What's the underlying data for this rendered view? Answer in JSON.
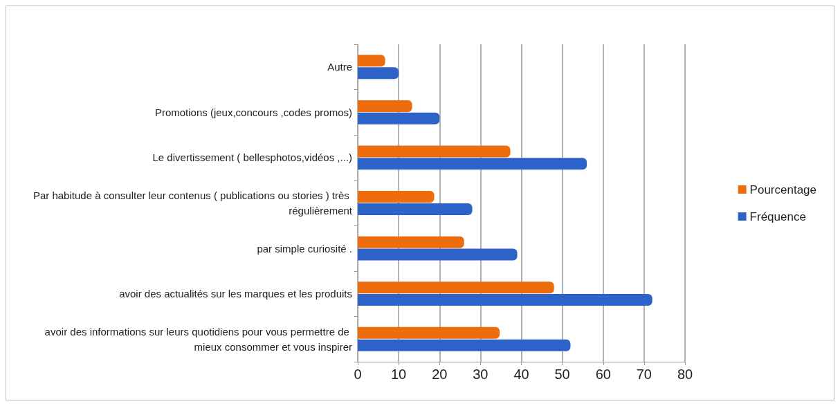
{
  "chart_data": {
    "type": "bar",
    "orientation": "horizontal",
    "categories": [
      "Autre",
      "Promotions (jeux,concours ,codes promos)",
      "Le divertissement ( bellesphotos,vidéos ,...)",
      "Par habitude à consulter leur contenus ( publications ou stories ) très régulièrement",
      "par simple curiosité .",
      "avoir des actualités sur les marques et les produits",
      "avoir des informations sur leurs quotidiens pour vous permettre de mieux consommer et vous inspirer"
    ],
    "series": [
      {
        "name": "Pourcentage",
        "color": "#ed6c0e",
        "values": [
          6.7,
          13.3,
          37.3,
          18.7,
          26,
          48,
          34.7
        ]
      },
      {
        "name": "Fréquence",
        "color": "#2d62c9",
        "values": [
          10,
          20,
          56,
          28,
          39,
          72,
          52
        ]
      }
    ],
    "xlim": [
      0,
      80
    ],
    "xticks": [
      0,
      10,
      20,
      30,
      40,
      50,
      60,
      70,
      80
    ],
    "grid": "x",
    "legend": "right"
  }
}
